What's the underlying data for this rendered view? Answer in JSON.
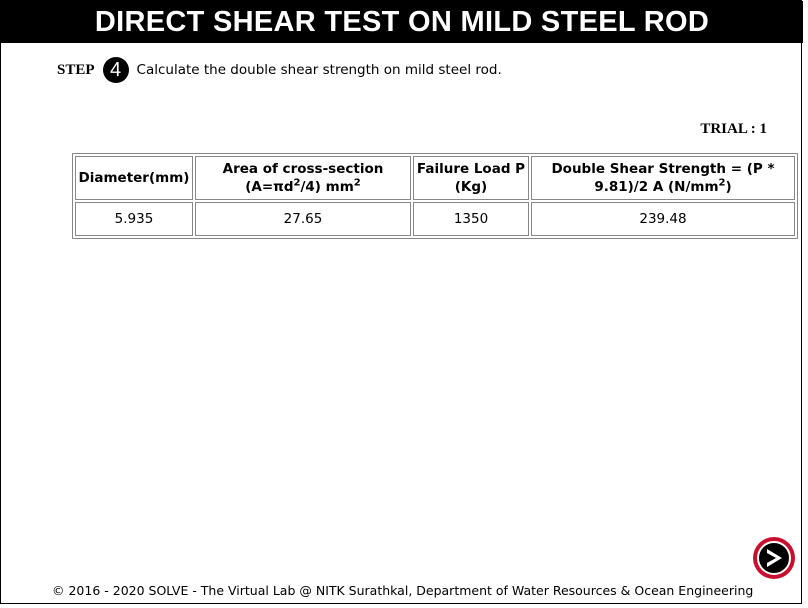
{
  "header": {
    "title": "DIRECT SHEAR TEST ON MILD STEEL ROD"
  },
  "step": {
    "label": "STEP",
    "number": "4",
    "instruction": "Calculate the double shear strength on mild steel rod."
  },
  "trial": {
    "label": "TRIAL : 1"
  },
  "table": {
    "headers": {
      "diameter": "Diameter(mm)",
      "area_line1": "Area of cross-section",
      "area_line2_prefix": "(A=πd",
      "area_line2_sup": "2",
      "area_line2_mid": "/4) mm",
      "area_line2_sup2": "2",
      "load_line1": "Failure Load P",
      "load_line2": "(Kg)",
      "strength_line1": "Double Shear Strength = (P *",
      "strength_line2_prefix": "9.81)/2 A (N/mm",
      "strength_line2_sup": "2",
      "strength_line2_suffix": ")"
    },
    "rows": [
      {
        "diameter": "5.935",
        "area": "27.65",
        "load": "1350",
        "strength": "239.48"
      }
    ]
  },
  "footer": {
    "text": "© 2016 - 2020 SOLVE - The Virtual Lab @ NITK Surathkal, Department of Water Resources & Ocean Engineering"
  },
  "colors": {
    "title_bg": "#000000",
    "next_button_ring": "#c8102e"
  },
  "icons": {
    "next": "chevron-right-icon"
  }
}
